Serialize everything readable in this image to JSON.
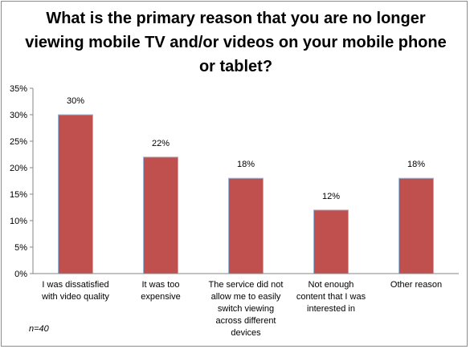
{
  "chart_data": {
    "type": "bar",
    "title": "What is the primary reason that you are no longer viewing mobile TV and/or videos on your mobile phone or tablet?",
    "categories": [
      [
        "I was dissatisfied",
        "with video quality"
      ],
      [
        "It was too",
        "expensive"
      ],
      [
        "The service did not",
        "allow me to easily",
        "switch viewing",
        "across different",
        "devices"
      ],
      [
        "Not enough",
        "content that I was",
        "interested in"
      ],
      [
        "Other reason"
      ]
    ],
    "values": [
      30,
      22,
      18,
      12,
      18
    ],
    "data_labels": [
      "30%",
      "22%",
      "18%",
      "12%",
      "18%"
    ],
    "y_ticks": [
      "0%",
      "5%",
      "10%",
      "15%",
      "20%",
      "25%",
      "30%",
      "35%"
    ],
    "ylim": [
      0,
      35
    ],
    "grid": false,
    "bar_color": "#c0504d",
    "note": "n=40"
  }
}
